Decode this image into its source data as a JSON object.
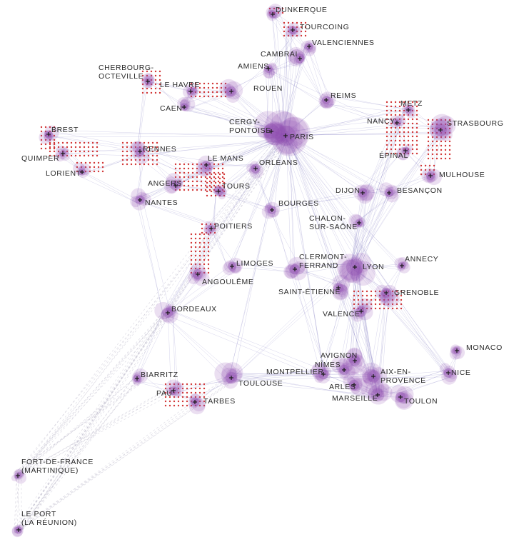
{
  "map": {
    "colors": {
      "background": "#ffffff",
      "link": "#6a64b8",
      "link_overseas": "#b9b7c9",
      "node_blob": "#8e4cb0",
      "marker": "#1a1a1a",
      "dot_grid": "#cc1f1f",
      "label": "#2b2b2b"
    },
    "cities": [
      {
        "id": "dunkerque",
        "line1": "DUNKERQUE",
        "line2": ""
      },
      {
        "id": "tourcoing",
        "line1": "TOURCOING",
        "line2": ""
      },
      {
        "id": "valenciennes",
        "line1": "VALENCIENNES",
        "line2": ""
      },
      {
        "id": "cambrai",
        "line1": "CAMBRAI",
        "line2": ""
      },
      {
        "id": "amiens",
        "line1": "AMIENS",
        "line2": ""
      },
      {
        "id": "cherbourg",
        "line1": "CHERBOURG-",
        "line2": "OCTEVILLE"
      },
      {
        "id": "lehavre",
        "line1": "LE HAVRE",
        "line2": ""
      },
      {
        "id": "rouen",
        "line1": "ROUEN",
        "line2": ""
      },
      {
        "id": "caen",
        "line1": "CAEN",
        "line2": ""
      },
      {
        "id": "reims",
        "line1": "REIMS",
        "line2": ""
      },
      {
        "id": "metz",
        "line1": "METZ",
        "line2": ""
      },
      {
        "id": "nancy",
        "line1": "NANCY",
        "line2": ""
      },
      {
        "id": "strasbourg",
        "line1": "STRASBOURG",
        "line2": ""
      },
      {
        "id": "brest",
        "line1": "BREST",
        "line2": ""
      },
      {
        "id": "cergy",
        "line1": "CERGY-",
        "line2": "PONTOISE"
      },
      {
        "id": "paris",
        "line1": "PARIS",
        "line2": ""
      },
      {
        "id": "epinal",
        "line1": "ÉPINAL",
        "line2": ""
      },
      {
        "id": "quimper",
        "line1": "QUIMPER",
        "line2": ""
      },
      {
        "id": "rennes",
        "line1": "RENNES",
        "line2": ""
      },
      {
        "id": "lorient",
        "line1": "LORIENT",
        "line2": ""
      },
      {
        "id": "lemans",
        "line1": "LE MANS",
        "line2": ""
      },
      {
        "id": "orleans",
        "line1": "ORLÉANS",
        "line2": ""
      },
      {
        "id": "mulhouse",
        "line1": "MULHOUSE",
        "line2": ""
      },
      {
        "id": "angers",
        "line1": "ANGERS",
        "line2": ""
      },
      {
        "id": "tours",
        "line1": "TOURS",
        "line2": ""
      },
      {
        "id": "dijon",
        "line1": "DIJON",
        "line2": ""
      },
      {
        "id": "besancon",
        "line1": "BESANÇON",
        "line2": ""
      },
      {
        "id": "nantes",
        "line1": "NANTES",
        "line2": ""
      },
      {
        "id": "bourges",
        "line1": "BOURGES",
        "line2": ""
      },
      {
        "id": "chalon",
        "line1": "CHALON-",
        "line2": "SUR-SAÔNE"
      },
      {
        "id": "poitiers",
        "line1": "POITIERS",
        "line2": ""
      },
      {
        "id": "clermont",
        "line1": "CLERMONT-",
        "line2": "FERRAND"
      },
      {
        "id": "annecy",
        "line1": "ANNECY",
        "line2": ""
      },
      {
        "id": "limoges",
        "line1": "LIMOGES",
        "line2": ""
      },
      {
        "id": "lyon",
        "line1": "LYON",
        "line2": ""
      },
      {
        "id": "angouleme",
        "line1": "ANGOULÊME",
        "line2": ""
      },
      {
        "id": "saintetienne",
        "line1": "SAINT-ÉTIENNE",
        "line2": ""
      },
      {
        "id": "grenoble",
        "line1": "GRENOBLE",
        "line2": ""
      },
      {
        "id": "valence",
        "line1": "VALENCE",
        "line2": ""
      },
      {
        "id": "bordeaux",
        "line1": "BORDEAUX",
        "line2": ""
      },
      {
        "id": "monaco",
        "line1": "MONACO",
        "line2": ""
      },
      {
        "id": "avignon",
        "line1": "AVIGNON",
        "line2": ""
      },
      {
        "id": "nimes",
        "line1": "NÎMES",
        "line2": ""
      },
      {
        "id": "biarritz",
        "line1": "BIARRITZ",
        "line2": ""
      },
      {
        "id": "aix",
        "line1": "AIX-EN-",
        "line2": "PROVENCE"
      },
      {
        "id": "montpellier",
        "line1": "MONTPELLIER",
        "line2": ""
      },
      {
        "id": "nice",
        "line1": "NICE",
        "line2": ""
      },
      {
        "id": "toulouse",
        "line1": "TOULOUSE",
        "line2": ""
      },
      {
        "id": "pau",
        "line1": "PAU",
        "line2": ""
      },
      {
        "id": "arles",
        "line1": "ARLES",
        "line2": ""
      },
      {
        "id": "marseille",
        "line1": "MARSEILLE",
        "line2": ""
      },
      {
        "id": "toulon",
        "line1": "TOULON",
        "line2": ""
      },
      {
        "id": "tarbes",
        "line1": "TARBES",
        "line2": ""
      },
      {
        "id": "fortdefrance",
        "line1": "FORT-DE-FRANCE",
        "line2": "(MARTINIQUE)"
      },
      {
        "id": "leport",
        "line1": "LE PORT",
        "line2": "(LA RÉUNION)"
      }
    ],
    "links": [
      [
        "paris",
        "cergy"
      ],
      [
        "paris",
        "rouen"
      ],
      [
        "paris",
        "amiens"
      ],
      [
        "paris",
        "reims"
      ],
      [
        "paris",
        "orleans"
      ],
      [
        "paris",
        "lemans"
      ],
      [
        "paris",
        "tours"
      ],
      [
        "paris",
        "bourges"
      ],
      [
        "paris",
        "dijon"
      ],
      [
        "paris",
        "lyon"
      ],
      [
        "paris",
        "lille_area"
      ],
      [
        "paris",
        "nancy"
      ],
      [
        "paris",
        "metz"
      ],
      [
        "paris",
        "strasbourg"
      ],
      [
        "paris",
        "rennes"
      ],
      [
        "paris",
        "caen"
      ],
      [
        "paris",
        "lehavre"
      ],
      [
        "paris",
        "nantes"
      ],
      [
        "paris",
        "angers"
      ],
      [
        "paris",
        "bordeaux"
      ],
      [
        "paris",
        "toulouse"
      ],
      [
        "paris",
        "marseille"
      ],
      [
        "paris",
        "grenoble"
      ],
      [
        "paris",
        "clermont"
      ],
      [
        "paris",
        "poitiers"
      ],
      [
        "paris",
        "limoges"
      ],
      [
        "paris",
        "montpellier"
      ],
      [
        "paris",
        "nice"
      ],
      [
        "paris",
        "besancon"
      ],
      [
        "paris",
        "chalon"
      ],
      [
        "paris",
        "valenciennes"
      ],
      [
        "paris",
        "tourcoing"
      ],
      [
        "paris",
        "dunkerque"
      ],
      [
        "paris",
        "cambrai"
      ],
      [
        "paris",
        "brest"
      ],
      [
        "paris",
        "aix"
      ],
      [
        "cergy",
        "rouen"
      ],
      [
        "cergy",
        "amiens"
      ],
      [
        "cergy",
        "caen"
      ],
      [
        "rouen",
        "lehavre"
      ],
      [
        "rouen",
        "caen"
      ],
      [
        "rouen",
        "amiens"
      ],
      [
        "lehavre",
        "caen"
      ],
      [
        "caen",
        "cherbourg"
      ],
      [
        "cherbourg",
        "rennes"
      ],
      [
        "rennes",
        "brest"
      ],
      [
        "rennes",
        "quimper"
      ],
      [
        "rennes",
        "lorient"
      ],
      [
        "rennes",
        "nantes"
      ],
      [
        "rennes",
        "angers"
      ],
      [
        "rennes",
        "lemans"
      ],
      [
        "brest",
        "quimper"
      ],
      [
        "brest",
        "lorient"
      ],
      [
        "quimper",
        "lorient"
      ],
      [
        "lorient",
        "nantes"
      ],
      [
        "nantes",
        "angers"
      ],
      [
        "angers",
        "tours"
      ],
      [
        "angers",
        "lemans"
      ],
      [
        "lemans",
        "tours"
      ],
      [
        "tours",
        "orleans"
      ],
      [
        "tours",
        "poitiers"
      ],
      [
        "orleans",
        "bourges"
      ],
      [
        "bourges",
        "clermont"
      ],
      [
        "bourges",
        "dijon"
      ],
      [
        "poitiers",
        "angouleme"
      ],
      [
        "poitiers",
        "limoges"
      ],
      [
        "angouleme",
        "bordeaux"
      ],
      [
        "limoges",
        "clermont"
      ],
      [
        "limoges",
        "bordeaux"
      ],
      [
        "bordeaux",
        "toulouse"
      ],
      [
        "bordeaux",
        "biarritz"
      ],
      [
        "bordeaux",
        "pau"
      ],
      [
        "biarritz",
        "pau"
      ],
      [
        "pau",
        "tarbes"
      ],
      [
        "tarbes",
        "toulouse"
      ],
      [
        "toulouse",
        "montpellier"
      ],
      [
        "toulouse",
        "marseille"
      ],
      [
        "toulouse",
        "pau"
      ],
      [
        "montpellier",
        "nimes"
      ],
      [
        "nimes",
        "avignon"
      ],
      [
        "nimes",
        "arles"
      ],
      [
        "arles",
        "marseille"
      ],
      [
        "avignon",
        "aix"
      ],
      [
        "aix",
        "marseille"
      ],
      [
        "marseille",
        "toulon"
      ],
      [
        "toulon",
        "nice"
      ],
      [
        "nice",
        "monaco"
      ],
      [
        "aix",
        "nice"
      ],
      [
        "marseille",
        "nice"
      ],
      [
        "montpellier",
        "marseille"
      ],
      [
        "lyon",
        "grenoble"
      ],
      [
        "lyon",
        "saintetienne"
      ],
      [
        "lyon",
        "valence"
      ],
      [
        "lyon",
        "annecy"
      ],
      [
        "lyon",
        "clermont"
      ],
      [
        "lyon",
        "dijon"
      ],
      [
        "lyon",
        "chalon"
      ],
      [
        "lyon",
        "marseille"
      ],
      [
        "lyon",
        "avignon"
      ],
      [
        "lyon",
        "montpellier"
      ],
      [
        "lyon",
        "nimes"
      ],
      [
        "lyon",
        "toulouse"
      ],
      [
        "lyon",
        "nice"
      ],
      [
        "lyon",
        "aix"
      ],
      [
        "lyon",
        "strasbourg"
      ],
      [
        "lyon",
        "besancon"
      ],
      [
        "grenoble",
        "valence"
      ],
      [
        "grenoble",
        "annecy"
      ],
      [
        "grenoble",
        "aix"
      ],
      [
        "grenoble",
        "marseille"
      ],
      [
        "grenoble",
        "nice"
      ],
      [
        "valence",
        "avignon"
      ],
      [
        "valence",
        "marseille"
      ],
      [
        "saintetienne",
        "clermont"
      ],
      [
        "saintetienne",
        "valence"
      ],
      [
        "dijon",
        "besancon"
      ],
      [
        "dijon",
        "chalon"
      ],
      [
        "dijon",
        "nancy"
      ],
      [
        "besancon",
        "mulhouse"
      ],
      [
        "mulhouse",
        "strasbourg"
      ],
      [
        "strasbourg",
        "nancy"
      ],
      [
        "strasbourg",
        "metz"
      ],
      [
        "metz",
        "nancy"
      ],
      [
        "nancy",
        "epinal"
      ],
      [
        "epinal",
        "mulhouse"
      ],
      [
        "reims",
        "metz"
      ],
      [
        "reims",
        "nancy"
      ],
      [
        "reims",
        "amiens"
      ],
      [
        "reims",
        "cambrai"
      ],
      [
        "amiens",
        "cambrai"
      ],
      [
        "cambrai",
        "valenciennes"
      ],
      [
        "valenciennes",
        "tourcoing"
      ],
      [
        "tourcoing",
        "dunkerque"
      ],
      [
        "dunkerque",
        "cambrai"
      ],
      [
        "tourcoing",
        "amiens"
      ],
      [
        "valenciennes",
        "reims"
      ],
      [
        "chalon",
        "lyon"
      ],
      [
        "chalon",
        "besancon"
      ],
      [
        "clermont",
        "montpellier"
      ],
      [
        "annecy",
        "chalon"
      ],
      [
        "besancon",
        "lyon"
      ],
      [
        "strasbourg",
        "besancon"
      ],
      [
        "nancy",
        "lyon"
      ],
      [
        "metz",
        "lyon"
      ],
      [
        "epinal",
        "dijon"
      ],
      [
        "rennes",
        "tours"
      ],
      [
        "nantes",
        "bordeaux"
      ],
      [
        "nantes",
        "poitiers"
      ],
      [
        "poitiers",
        "bordeaux"
      ],
      [
        "lemans",
        "orleans"
      ],
      [
        "toulouse",
        "nimes"
      ],
      [
        "toulouse",
        "aix"
      ],
      [
        "bordeaux",
        "montpellier"
      ],
      [
        "tours",
        "bourges"
      ],
      [
        "cherbourg",
        "lehavre"
      ]
    ],
    "overseas_links": [
      [
        "fortdefrance",
        "bordeaux"
      ],
      [
        "fortdefrance",
        "paris"
      ],
      [
        "fortdefrance",
        "biarritz"
      ],
      [
        "fortdefrance",
        "pau"
      ],
      [
        "leport",
        "bordeaux"
      ],
      [
        "leport",
        "paris"
      ],
      [
        "leport",
        "biarritz"
      ],
      [
        "leport",
        "toulouse"
      ],
      [
        "fortdefrance",
        "leport"
      ]
    ]
  }
}
